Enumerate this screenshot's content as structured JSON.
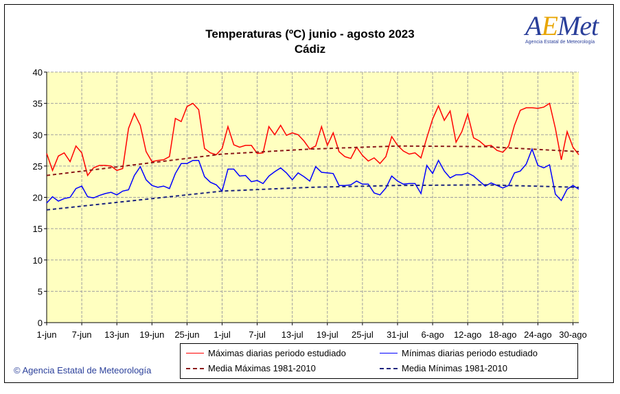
{
  "chart_data": {
    "type": "line",
    "title": "Temperaturas (ºC) junio - agosto 2023",
    "subtitle": "Cádiz",
    "ylim": [
      0,
      40
    ],
    "yticks": [
      0,
      5,
      10,
      15,
      20,
      25,
      30,
      35,
      40
    ],
    "grid": true,
    "days": 92,
    "xtick_days": [
      0,
      6,
      12,
      18,
      24,
      30,
      36,
      42,
      48,
      54,
      60,
      66,
      72,
      78,
      84,
      90
    ],
    "xtick_labels": [
      "1-jun",
      "7-jun",
      "13-jun",
      "19-jun",
      "25-jun",
      "1-jul",
      "7-jul",
      "13-jul",
      "19-jul",
      "25-jul",
      "31-jul",
      "6-ago",
      "12-ago",
      "18-ago",
      "24-ago",
      "30-ago"
    ],
    "legend_position": "bottom",
    "series": [
      {
        "name": "Máximas diarias periodo estudiado",
        "color": "#ff0000",
        "style": "solid",
        "values": [
          27,
          24.3,
          26.6,
          27.1,
          25.7,
          28.2,
          27.1,
          23.5,
          24.7,
          25.1,
          25.1,
          25.0,
          24.3,
          24.6,
          31,
          33.4,
          31.5,
          27.3,
          25.7,
          25.9,
          26,
          26.5,
          32.6,
          32.1,
          34.5,
          35,
          34,
          27.8,
          27.1,
          26.8,
          27.8,
          31.3,
          28.4,
          28,
          28.3,
          28.3,
          27,
          27.1,
          31.3,
          30,
          31.5,
          29.9,
          30.3,
          30,
          29,
          27.7,
          28.2,
          31.3,
          28.3,
          30.3,
          27.3,
          26.5,
          26.2,
          28,
          26.7,
          25.8,
          26.3,
          25.4,
          26.5,
          29.7,
          28.3,
          27.4,
          26.9,
          27.1,
          26.3,
          29.5,
          32.5,
          34.6,
          32.3,
          33.8,
          28.8,
          30.5,
          33.3,
          29.5,
          29,
          28.2,
          28.3,
          27.5,
          27.2,
          28.2,
          31.5,
          33.9,
          34.3,
          34.3,
          34.2,
          34.4,
          35,
          31,
          26,
          30.5,
          28,
          26.8
        ]
      },
      {
        "name": "Mínimas diarias periodo estudiado",
        "color": "#0000ff",
        "style": "solid",
        "values": [
          19.1,
          20.1,
          19.4,
          19.8,
          20,
          21.4,
          21.8,
          20.1,
          19.9,
          20.3,
          20.6,
          20.8,
          20.4,
          21,
          21.2,
          23.5,
          24.9,
          22.8,
          21.9,
          21.6,
          21.8,
          21.4,
          23.8,
          25.4,
          25.4,
          25.9,
          25.9,
          23.3,
          22.4,
          22.0,
          21.0,
          24.5,
          24.5,
          23.4,
          23.5,
          22.5,
          22.7,
          22.2,
          23.4,
          24.1,
          24.7,
          23.9,
          22.8,
          23.9,
          23.3,
          22.6,
          24.9,
          24.0,
          23.9,
          23.8,
          21.9,
          21.9,
          22.0,
          22.6,
          22.1,
          22.1,
          20.7,
          20.4,
          21.5,
          23.4,
          22.6,
          22.1,
          22.2,
          22.2,
          20.6,
          25.1,
          23.8,
          25.9,
          24.2,
          23.1,
          23.6,
          23.6,
          23.9,
          23.4,
          22.6,
          21.8,
          22.3,
          21.9,
          21.5,
          21.9,
          23.9,
          24.2,
          25.3,
          27.7,
          25.1,
          24.7,
          25.2,
          20.5,
          19.5,
          21.3,
          21.9,
          21.3
        ]
      },
      {
        "name": "Media Máximas 1981-2010",
        "color": "#8b1a1a",
        "style": "dashed",
        "points": [
          [
            0,
            23.5
          ],
          [
            15,
            25.2
          ],
          [
            30,
            26.9
          ],
          [
            45,
            27.7
          ],
          [
            60,
            28.2
          ],
          [
            75,
            28.1
          ],
          [
            91,
            27.3
          ]
        ]
      },
      {
        "name": "Media Mínimas 1981-2010",
        "color": "#1a237e",
        "style": "dashed",
        "points": [
          [
            0,
            18
          ],
          [
            15,
            19.5
          ],
          [
            30,
            21.0
          ],
          [
            45,
            21.6
          ],
          [
            60,
            21.9
          ],
          [
            75,
            22.0
          ],
          [
            91,
            21.6
          ]
        ]
      }
    ]
  },
  "logo": {
    "name": "AEMet",
    "tagline": "Agencia Estatal de Meteorología"
  },
  "copyright": "© Agencia Estatal de Meteorología"
}
